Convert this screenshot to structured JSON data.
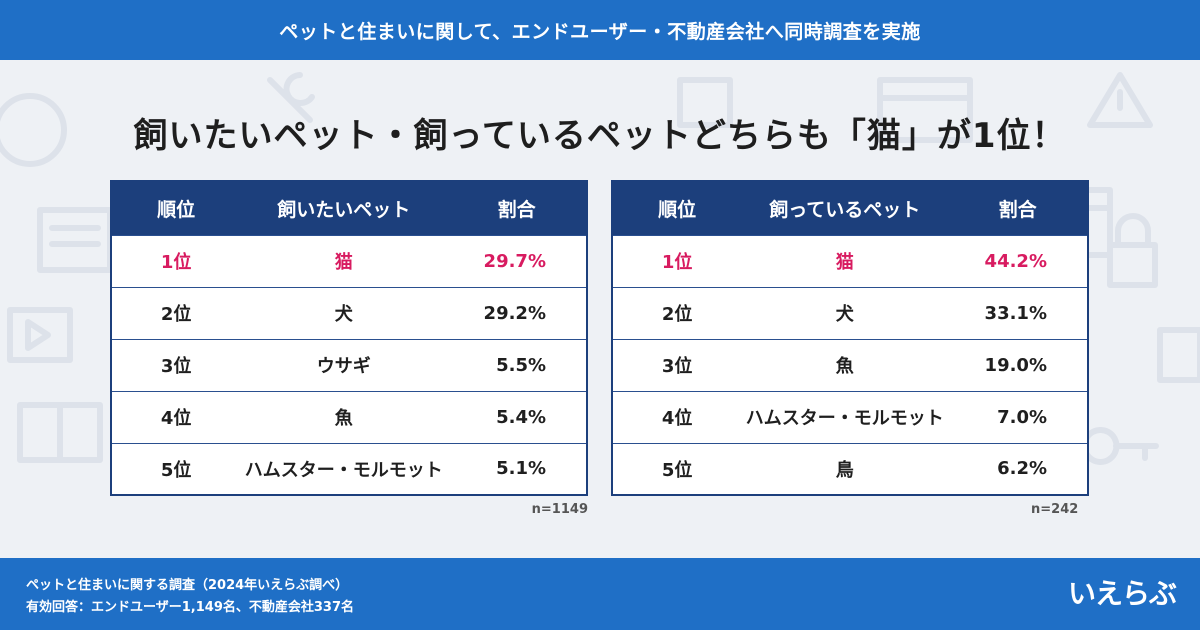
{
  "header": {
    "title": "ペットと住まいに関して、エンドユーザー・不動産会社へ同時調査を実施"
  },
  "headline": "飼いたいペット・飼っているペットどちらも「猫」が1位！",
  "colors": {
    "header_blue": "#1f6fc6",
    "table_navy": "#1c3f7c",
    "highlight_pink": "#d81b60"
  },
  "tables": [
    {
      "headers": [
        "順位",
        "飼いたいペット",
        "割合"
      ],
      "rows": [
        {
          "rank": "1位",
          "pet": "猫",
          "pct": "29.7%"
        },
        {
          "rank": "2位",
          "pet": "犬",
          "pct": "29.2%"
        },
        {
          "rank": "3位",
          "pet": "ウサギ",
          "pct": "5.5%"
        },
        {
          "rank": "4位",
          "pet": "魚",
          "pct": "5.4%"
        },
        {
          "rank": "5位",
          "pet": "ハムスター・モルモット",
          "pct": "5.1%"
        }
      ],
      "n": "n=1149"
    },
    {
      "headers": [
        "順位",
        "飼っているペット",
        "割合"
      ],
      "rows": [
        {
          "rank": "1位",
          "pet": "猫",
          "pct": "44.2%"
        },
        {
          "rank": "2位",
          "pet": "犬",
          "pct": "33.1%"
        },
        {
          "rank": "3位",
          "pet": "魚",
          "pct": "19.0%"
        },
        {
          "rank": "4位",
          "pet": "ハムスター・モルモット",
          "pct": "7.0%"
        },
        {
          "rank": "5位",
          "pet": "鳥",
          "pct": "6.2%"
        }
      ],
      "n": "n=242"
    }
  ],
  "footer": {
    "line1": "ペットと住まいに関する調査（2024年いえらぶ調べ）",
    "line2": "有効回答：エンドユーザー1,149名、不動産会社337名",
    "logo": "いえらぶ"
  }
}
